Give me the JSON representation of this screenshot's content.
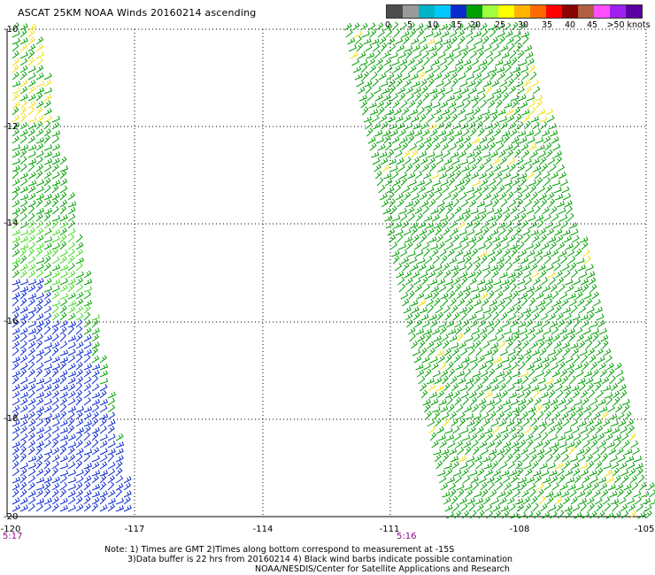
{
  "title": "ASCAT 25KM NOAA Winds 20160214 ascending",
  "legend": {
    "colors": [
      "#4d4d4d",
      "#9a9a9a",
      "#00b4c8",
      "#00c8ff",
      "#0a2ad0",
      "#00a000",
      "#a0ff40",
      "#ffff00",
      "#ffb400",
      "#ff6a00",
      "#ff0000",
      "#8b0000",
      "#b06040",
      "#ff50ff",
      "#a020f0",
      "#5a00a0"
    ],
    "labels": [
      "0",
      "5",
      "10",
      "15",
      "20",
      "25",
      "30",
      "35",
      "40",
      "45",
      ">50 knots"
    ]
  },
  "map": {
    "lat_labels": [
      "-10",
      "-12",
      "-14",
      "-16",
      "-18",
      "-20"
    ],
    "lon_labels": [
      "-120",
      "-117",
      "-114",
      "-111",
      "-108",
      "-105"
    ],
    "time_left": "5:17",
    "time_right": "5:16"
  },
  "notes": {
    "line1": "Note: 1) Times are GMT 2)Times along bottom correspond to measurement at -15S",
    "line2": "3)Data buffer is 22 hrs from 20160214 4) Black wind barbs indicate possible contamination",
    "line3": "NOAA/NESDIS/Center for Satellite Applications and Research"
  },
  "barb_colors": {
    "green": "#00a000",
    "light_green": "#44dd22",
    "blue": "#0a2ad0",
    "yellow": "#f0e010"
  }
}
